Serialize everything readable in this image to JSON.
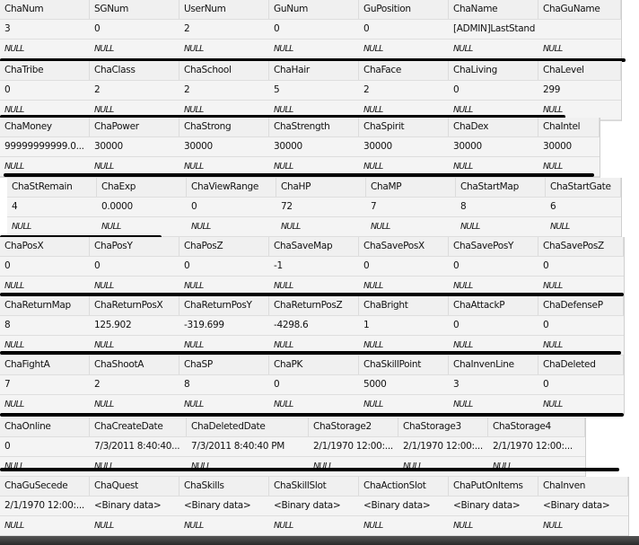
{
  "null_label": "NULL",
  "sections": [
    {
      "headers": [
        "ChaNum",
        "SGNum",
        "UserNum",
        "GuNum",
        "GuPosition",
        "ChaName",
        "ChaGuName"
      ],
      "values": [
        "3",
        "0",
        "2",
        "0",
        "0",
        "[ADMIN]LastStand",
        ""
      ]
    },
    {
      "headers": [
        "ChaTribe",
        "ChaClass",
        "ChaSchool",
        "ChaHair",
        "ChaFace",
        "ChaLiving",
        "ChaLevel"
      ],
      "values": [
        "0",
        "2",
        "2",
        "5",
        "2",
        "0",
        "299"
      ]
    },
    {
      "headers": [
        "ChaMoney",
        "ChaPower",
        "ChaStrong",
        "ChaStrength",
        "ChaSpirit",
        "ChaDex",
        "ChaIntel"
      ],
      "values": [
        "99999999999.0...",
        "30000",
        "30000",
        "30000",
        "30000",
        "30000",
        "30000"
      ]
    },
    {
      "headers": [
        "ChaStRemain",
        "ChaExp",
        "ChaViewRange",
        "ChaHP",
        "ChaMP",
        "ChaStartMap",
        "ChaStartGate"
      ],
      "values": [
        "4",
        "0.0000",
        "0",
        "72",
        "7",
        "8",
        "6"
      ]
    },
    {
      "headers": [
        "ChaPosX",
        "ChaPosY",
        "ChaPosZ",
        "ChaSaveMap",
        "ChaSavePosX",
        "ChaSavePosY",
        "ChaSavePosZ"
      ],
      "values": [
        "0",
        "0",
        "0",
        "-1",
        "0",
        "0",
        "0"
      ]
    },
    {
      "headers": [
        "ChaReturnMap",
        "ChaReturnPosX",
        "ChaReturnPosY",
        "ChaReturnPosZ",
        "ChaBright",
        "ChaAttackP",
        "ChaDefenseP"
      ],
      "values": [
        "8",
        "125.902",
        "-319.699",
        "-4298.6",
        "1",
        "0",
        "0"
      ]
    },
    {
      "headers": [
        "ChaFightA",
        "ChaShootA",
        "ChaSP",
        "ChaPK",
        "ChaSkillPoint",
        "ChaInvenLine",
        "ChaDeleted"
      ],
      "values": [
        "7",
        "2",
        "8",
        "0",
        "5000",
        "3",
        "0"
      ]
    },
    {
      "headers": [
        "ChaOnline",
        "ChaCreateDate",
        "ChaDeletedDate",
        "ChaStorage2",
        "ChaStorage3",
        "ChaStorage4"
      ],
      "values": [
        "0",
        "7/3/2011 8:40:40...",
        "7/3/2011 8:40:40 PM",
        "2/1/1970 12:00:...",
        "2/1/1970 12:00:...",
        "2/1/1970 12:00:..."
      ]
    },
    {
      "headers": [
        "ChaGuSecede",
        "ChaQuest",
        "ChaSkills",
        "ChaSkillSlot",
        "ChaActionSlot",
        "ChaPutOnItems",
        "ChaInven"
      ],
      "values": [
        "2/1/1970 12:00:...",
        "<Binary data>",
        "<Binary data>",
        "<Binary data>",
        "<Binary data>",
        "<Binary data>",
        "<Binary data>"
      ]
    }
  ]
}
